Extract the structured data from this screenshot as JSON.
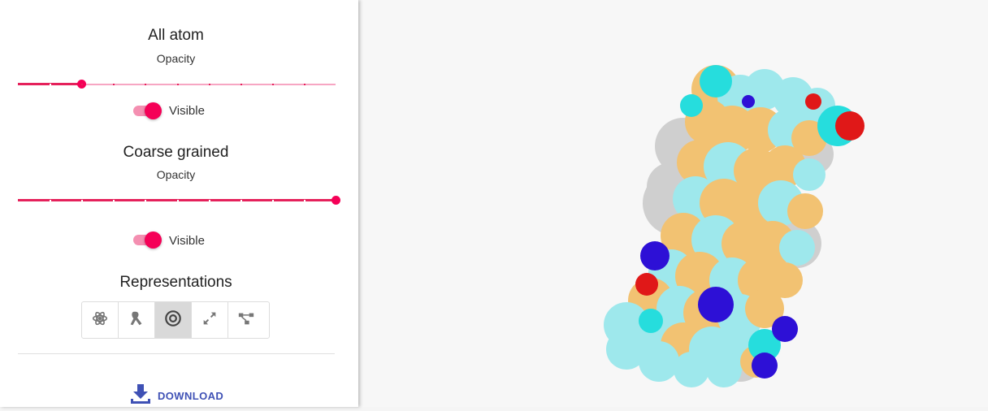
{
  "all_atom": {
    "title": "All atom",
    "opacity_label": "Opacity",
    "opacity": 0.2,
    "visible_label": "Visible",
    "visible": true
  },
  "coarse_grained": {
    "title": "Coarse grained",
    "opacity_label": "Opacity",
    "opacity": 1.0,
    "visible_label": "Visible",
    "visible": true
  },
  "representations": {
    "title": "Representations",
    "buttons": [
      {
        "icon": "atom-icon",
        "selected": false
      },
      {
        "icon": "ribbon-icon",
        "selected": false
      },
      {
        "icon": "surface-icon",
        "selected": true
      },
      {
        "icon": "expand-icon",
        "selected": false
      },
      {
        "icon": "network-icon",
        "selected": false
      }
    ]
  },
  "download": {
    "label": "DOWNLOAD",
    "icon": "download-icon"
  },
  "colors": {
    "accent": "#f50057",
    "accent_light": "#f48fb1",
    "link": "#3f51b5",
    "surface_tan": "#f2c272",
    "surface_cyan": "#9ee8ec",
    "surface_blue": "#2d10d6",
    "surface_red": "#e01818"
  }
}
